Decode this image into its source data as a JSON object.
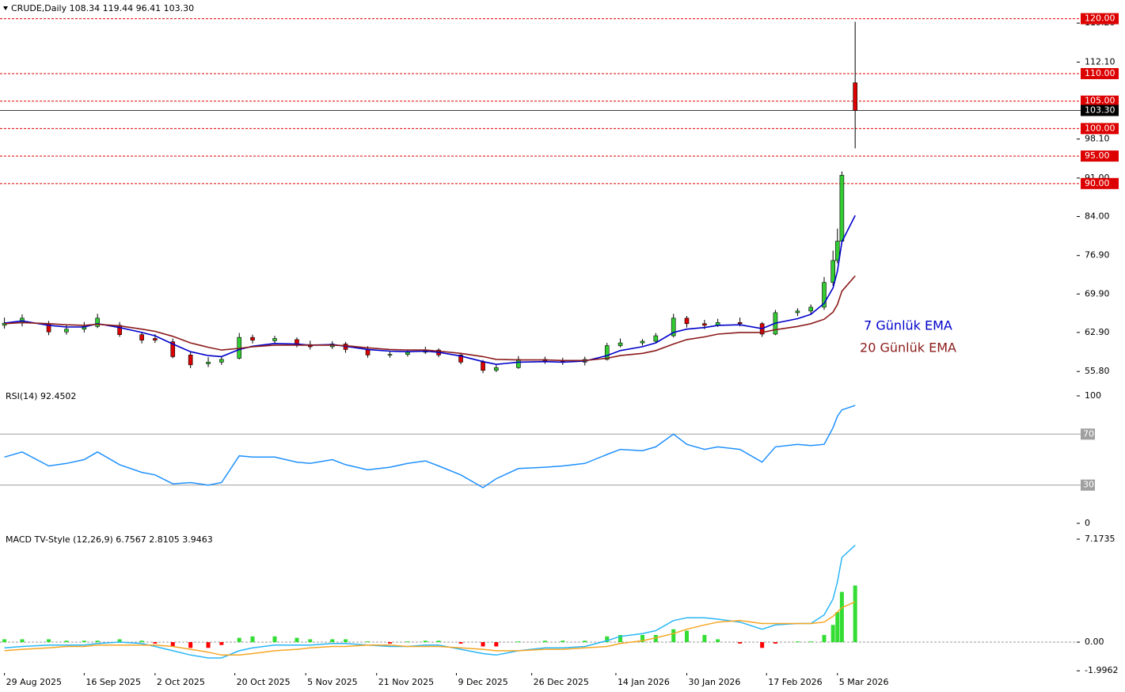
{
  "chart_data": [
    {
      "type": "candlestick",
      "title": "CRUDE,Daily  108.34 119.44 96.41 103.30",
      "x": [
        "2025-08-29",
        "2025-09-02",
        "2025-09-08",
        "2025-09-12",
        "2025-09-16",
        "2025-09-19",
        "2025-09-24",
        "2025-09-29",
        "2025-10-02",
        "2025-10-06",
        "2025-10-10",
        "2025-10-14",
        "2025-10-17",
        "2025-10-21",
        "2025-10-24",
        "2025-10-29",
        "2025-11-03",
        "2025-11-06",
        "2025-11-11",
        "2025-11-14",
        "2025-11-19",
        "2025-11-24",
        "2025-11-28",
        "2025-12-02",
        "2025-12-05",
        "2025-12-10",
        "2025-12-15",
        "2025-12-18",
        "2025-12-23",
        "2025-12-29",
        "2026-01-02",
        "2026-01-07",
        "2026-01-12",
        "2026-01-15",
        "2026-01-20",
        "2026-01-23",
        "2026-01-27",
        "2026-01-30",
        "2026-02-03",
        "2026-02-06",
        "2026-02-11",
        "2026-02-16",
        "2026-02-19",
        "2026-02-24",
        "2026-02-27",
        "2026-03-02",
        "2026-03-04",
        "2026-03-05",
        "2026-03-06",
        "2026-03-09"
      ],
      "open": [
        64.2,
        64.6,
        64.5,
        63.0,
        63.5,
        64.0,
        64.2,
        62.5,
        61.8,
        61.2,
        58.8,
        57.2,
        57.5,
        58.2,
        62.0,
        61.4,
        61.6,
        60.7,
        60.3,
        60.8,
        59.8,
        58.8,
        58.9,
        59.3,
        59.7,
        58.8,
        57.5,
        56.0,
        56.5,
        58.0,
        57.7,
        57.5,
        58.0,
        60.5,
        61.0,
        61.3,
        62.3,
        65.5,
        64.5,
        64.2,
        64.7,
        64.5,
        62.6,
        66.5,
        66.8,
        67.5,
        72.0,
        76.0,
        79.5,
        108.34
      ],
      "high": [
        65.6,
        66.2,
        65.0,
        64.3,
        64.8,
        66.3,
        64.8,
        63.0,
        62.6,
        61.8,
        59.4,
        58.4,
        58.6,
        62.8,
        62.5,
        62.3,
        62.0,
        61.4,
        61.3,
        61.2,
        60.4,
        59.4,
        59.7,
        60.3,
        60.0,
        59.2,
        57.9,
        57.0,
        58.6,
        58.5,
        58.3,
        58.5,
        61.0,
        61.8,
        61.7,
        62.8,
        66.3,
        65.9,
        65.2,
        65.4,
        65.6,
        64.8,
        67.0,
        67.3,
        68.0,
        73.0,
        77.8,
        81.8,
        92.2,
        119.44
      ],
      "low": [
        63.6,
        64.0,
        62.4,
        62.5,
        62.9,
        63.7,
        62.1,
        60.9,
        61.0,
        58.2,
        56.4,
        56.6,
        57.0,
        58.0,
        60.9,
        60.8,
        60.2,
        59.8,
        59.9,
        59.2,
        58.3,
        58.3,
        58.5,
        59.0,
        58.4,
        57.1,
        55.5,
        55.7,
        56.3,
        57.2,
        57.0,
        56.9,
        57.8,
        60.2,
        60.5,
        61.0,
        62.0,
        63.8,
        63.5,
        63.9,
        64.0,
        62.1,
        62.4,
        65.9,
        66.3,
        67.0,
        71.4,
        75.5,
        79.0,
        96.41
      ],
      "close": [
        64.6,
        65.5,
        63.0,
        63.5,
        64.0,
        65.5,
        62.5,
        61.5,
        61.5,
        58.5,
        57.0,
        57.5,
        58.0,
        62.0,
        61.5,
        61.8,
        60.7,
        60.3,
        60.8,
        59.8,
        58.8,
        58.9,
        59.3,
        59.7,
        58.8,
        57.5,
        56.0,
        56.5,
        58.0,
        57.7,
        57.5,
        58.0,
        60.5,
        61.0,
        61.3,
        62.3,
        65.5,
        64.5,
        64.2,
        64.7,
        64.5,
        62.6,
        66.5,
        66.8,
        67.5,
        72.0,
        76.0,
        79.5,
        91.5,
        103.3
      ],
      "up_color": "#33cc33",
      "down_color": "#dd0000",
      "series": [
        {
          "name": "7 Günlük EMA",
          "color": "#0000cc",
          "values": [
            64.6,
            65.0,
            64.2,
            63.9,
            63.9,
            64.5,
            63.8,
            62.9,
            62.3,
            60.8,
            59.4,
            58.7,
            58.5,
            59.8,
            60.4,
            60.9,
            60.8,
            60.6,
            60.7,
            60.4,
            59.8,
            59.5,
            59.4,
            59.5,
            59.3,
            58.6,
            57.6,
            57.1,
            57.5,
            57.6,
            57.5,
            57.7,
            58.7,
            59.6,
            60.3,
            61.0,
            62.9,
            63.5,
            63.8,
            64.2,
            64.3,
            63.6,
            64.6,
            65.4,
            66.2,
            68.2,
            71.0,
            74.1,
            79.4,
            84.2
          ]
        },
        {
          "name": "20 Günlük EMA",
          "color": "#8b1a1a",
          "values": [
            64.5,
            64.7,
            64.5,
            64.3,
            64.2,
            64.4,
            64.1,
            63.5,
            63.1,
            62.2,
            61.0,
            60.2,
            59.7,
            60.0,
            60.3,
            60.6,
            60.6,
            60.6,
            60.6,
            60.5,
            60.1,
            59.8,
            59.7,
            59.7,
            59.5,
            59.1,
            58.5,
            58.0,
            57.9,
            57.9,
            57.8,
            57.8,
            58.2,
            58.7,
            59.1,
            59.6,
            60.8,
            61.6,
            62.1,
            62.6,
            62.9,
            62.9,
            63.4,
            64.0,
            64.5,
            65.3,
            66.6,
            68.0,
            70.4,
            73.2
          ]
        }
      ],
      "xlim": [
        "2025-08-28",
        "2026-04-28"
      ],
      "xticks": [
        {
          "value": "2025-08-29",
          "label": "29 Aug 2025"
        },
        {
          "value": "2025-09-16",
          "label": "16 Sep 2025"
        },
        {
          "value": "2025-10-02",
          "label": "2 Oct 2025"
        },
        {
          "value": "2025-10-20",
          "label": "20 Oct 2025"
        },
        {
          "value": "2025-11-05",
          "label": "5 Nov 2025"
        },
        {
          "value": "2025-11-21",
          "label": "21 Nov 2025"
        },
        {
          "value": "2025-12-09",
          "label": "9 Dec 2025"
        },
        {
          "value": "2025-12-26",
          "label": "26 Dec 2025"
        },
        {
          "value": "2026-01-14",
          "label": "14 Jan 2026"
        },
        {
          "value": "2026-01-30",
          "label": "30 Jan 2026"
        },
        {
          "value": "2026-02-17",
          "label": "17 Feb 2026"
        },
        {
          "value": "2026-03-05",
          "label": "5 Mar 2026"
        }
      ],
      "ylim": [
        52.8,
        123.4
      ],
      "yticks": [
        {
          "value": 119.2,
          "label": "119.20"
        },
        {
          "value": 112.1,
          "label": "112.10"
        },
        {
          "value": 98.1,
          "label": "98.10"
        },
        {
          "value": 91,
          "label": "91.00"
        },
        {
          "value": 84,
          "label": "84.00"
        },
        {
          "value": 76.9,
          "label": "76.90"
        },
        {
          "value": 69.9,
          "label": "69.90"
        },
        {
          "value": 62.9,
          "label": "62.90"
        },
        {
          "value": 55.8,
          "label": "55.80"
        }
      ],
      "levels": [
        {
          "value": 120,
          "label": "120.00"
        },
        {
          "value": 110,
          "label": "110.00"
        },
        {
          "value": 105,
          "label": "105.00"
        },
        {
          "value": 100,
          "label": "100.00"
        },
        {
          "value": 95,
          "label": "95.00"
        },
        {
          "value": 90,
          "label": "90.00"
        }
      ],
      "level_color": "#dd0000",
      "last_price": {
        "value": 103.3,
        "label": "103.30"
      }
    },
    {
      "type": "line",
      "title": "RSI(14) 92.4502",
      "series": [
        {
          "color": "#1e90ff",
          "values": [
            52,
            56,
            45,
            47,
            50,
            56,
            46,
            40,
            38,
            31,
            32,
            30,
            32,
            53,
            52,
            52,
            48,
            47,
            50,
            46,
            42,
            44,
            47,
            49,
            45,
            38,
            28,
            35,
            43,
            44,
            45,
            47,
            54,
            58,
            57,
            60,
            70,
            62,
            58,
            60,
            58,
            48,
            60,
            62,
            61,
            62,
            75,
            84,
            89,
            92.45
          ]
        }
      ],
      "ylim": [
        -5.6,
        106.2
      ],
      "yticks": [
        100,
        0
      ],
      "levels": [
        70,
        30
      ],
      "level_color": "#a0a0a0"
    },
    {
      "type": "macd",
      "title": "MACD TV-Style (12,26,9) 6.7567 2.8105 3.9463",
      "histogram": {
        "up_color": "#33dd33",
        "down_color": "#ff0000",
        "values": [
          0.2,
          0.2,
          0.2,
          0.1,
          0.1,
          0.1,
          0.2,
          0.1,
          -0.1,
          -0.3,
          -0.4,
          -0.4,
          -0.2,
          0.3,
          0.4,
          0.4,
          0.3,
          0.2,
          0.2,
          0.2,
          0.05,
          -0.1,
          0.05,
          0.1,
          0.1,
          -0.1,
          -0.3,
          -0.3,
          0.05,
          0.1,
          0.1,
          0.1,
          0.4,
          0.5,
          0.5,
          0.5,
          0.9,
          0.8,
          0.5,
          0.2,
          -0.1,
          -0.4,
          -0.1,
          0.05,
          0.05,
          0.5,
          1.2,
          2.1,
          3.5,
          3.9463
        ]
      },
      "series": [
        {
          "color": "#29b6f6",
          "values": [
            -0.4,
            -0.3,
            -0.2,
            -0.2,
            -0.2,
            -0.1,
            0.0,
            -0.1,
            -0.3,
            -0.6,
            -0.9,
            -1.1,
            -1.1,
            -0.6,
            -0.4,
            -0.2,
            -0.2,
            -0.2,
            -0.1,
            -0.1,
            -0.2,
            -0.3,
            -0.3,
            -0.2,
            -0.2,
            -0.5,
            -0.8,
            -0.9,
            -0.6,
            -0.4,
            -0.4,
            -0.3,
            0.1,
            0.4,
            0.6,
            0.8,
            1.5,
            1.7,
            1.7,
            1.6,
            1.4,
            0.9,
            1.2,
            1.3,
            1.3,
            1.9,
            3.0,
            4.2,
            5.9,
            6.7567
          ]
        },
        {
          "color": "#f5a623",
          "values": [
            -0.6,
            -0.5,
            -0.4,
            -0.3,
            -0.3,
            -0.2,
            -0.2,
            -0.2,
            -0.2,
            -0.3,
            -0.5,
            -0.7,
            -0.9,
            -0.9,
            -0.8,
            -0.6,
            -0.5,
            -0.4,
            -0.3,
            -0.3,
            -0.2,
            -0.2,
            -0.3,
            -0.3,
            -0.3,
            -0.4,
            -0.5,
            -0.6,
            -0.6,
            -0.5,
            -0.5,
            -0.4,
            -0.3,
            -0.1,
            0.1,
            0.3,
            0.6,
            0.9,
            1.2,
            1.4,
            1.5,
            1.3,
            1.3,
            1.3,
            1.3,
            1.4,
            1.8,
            2.1,
            2.4,
            2.8105
          ]
        }
      ],
      "ylim": [
        -2.15,
        7.67
      ],
      "yticks": [
        7.1735,
        {
          "value": 0,
          "label": "0.00"
        },
        -1.9962
      ]
    }
  ]
}
